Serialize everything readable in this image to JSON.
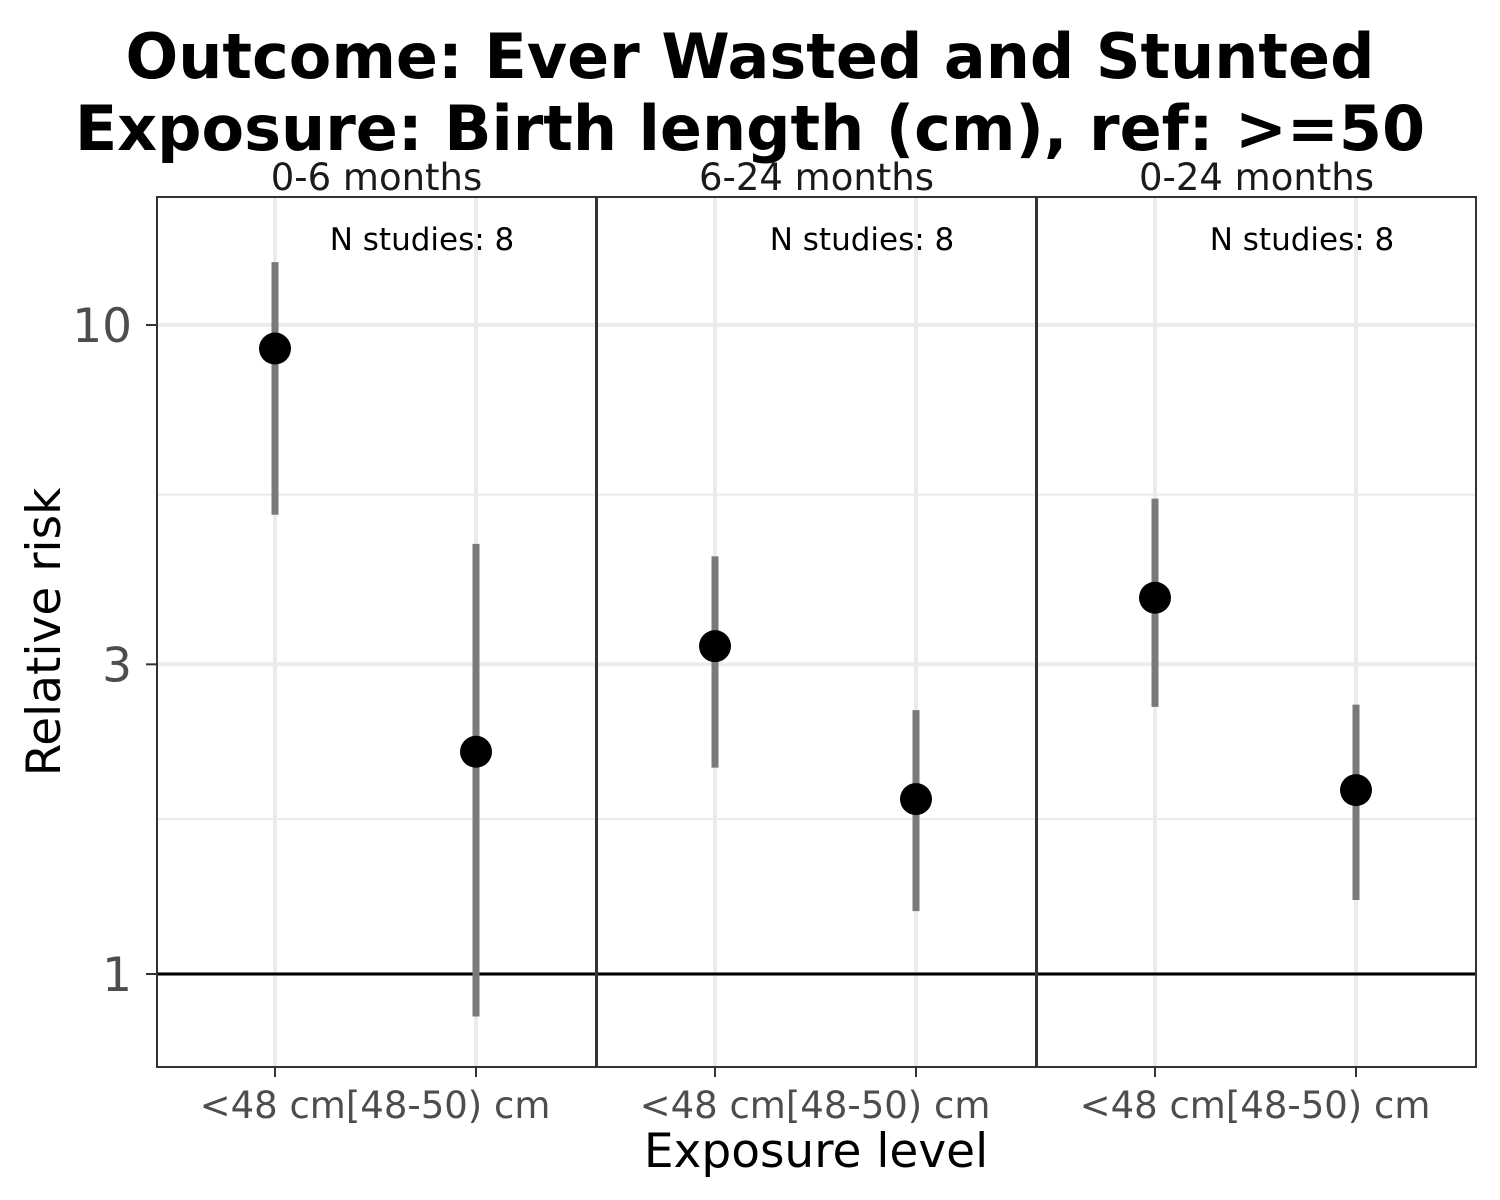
{
  "chart_data": {
    "type": "scatter",
    "title_lines": [
      "Outcome: Ever Wasted and Stunted",
      "Exposure: Birth length (cm), ref: >=50"
    ],
    "xlabel": "Exposure level",
    "ylabel": "Relative risk",
    "y_scale": "log",
    "ylim": [
      0.82,
      13.5
    ],
    "y_ticks": [
      1,
      3,
      10
    ],
    "y_tick_labels": [
      "1",
      "3",
      "10"
    ],
    "reference_line": 1,
    "grid": true,
    "categories": [
      "<48 cm",
      "[48-50) cm"
    ],
    "panels": [
      {
        "label": "0-6 months",
        "annotation": "N studies: 8",
        "points": [
          {
            "category": "<48 cm",
            "rr": 9.2,
            "lower": 5.1,
            "upper": 12.5
          },
          {
            "category": "[48-50) cm",
            "rr": 2.2,
            "lower": 0.86,
            "upper": 4.6
          }
        ]
      },
      {
        "label": "6-24 months",
        "annotation": "N studies: 8",
        "points": [
          {
            "category": "<48 cm",
            "rr": 3.2,
            "lower": 2.08,
            "upper": 4.4
          },
          {
            "category": "[48-50) cm",
            "rr": 1.86,
            "lower": 1.25,
            "upper": 2.55
          }
        ]
      },
      {
        "label": "0-24 months",
        "annotation": "N studies: 8",
        "points": [
          {
            "category": "<48 cm",
            "rr": 3.8,
            "lower": 2.58,
            "upper": 5.4
          },
          {
            "category": "[48-50) cm",
            "rr": 1.92,
            "lower": 1.3,
            "upper": 2.6
          }
        ]
      }
    ]
  }
}
